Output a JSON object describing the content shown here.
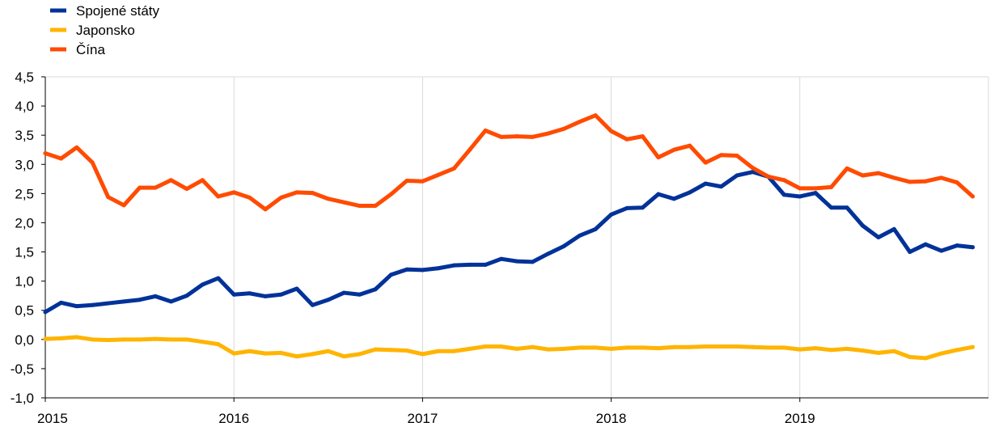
{
  "chart_data": {
    "type": "line",
    "title": "",
    "xlabel": "",
    "ylabel": "",
    "ylim": [
      -1.0,
      4.5
    ],
    "yticks": [
      -1.0,
      -0.5,
      0.0,
      0.5,
      1.0,
      1.5,
      2.0,
      2.5,
      3.0,
      3.5,
      4.0,
      4.5
    ],
    "ytick_labels": [
      "-1,0",
      "-0,5",
      "0,0",
      "0,5",
      "1,0",
      "1,5",
      "2,0",
      "2,5",
      "3,0",
      "3,5",
      "4,0",
      "4,5"
    ],
    "xticks": [
      2015,
      2016,
      2017,
      2018,
      2019
    ],
    "xtick_labels": [
      "2015",
      "2016",
      "2017",
      "2018",
      "2019"
    ],
    "x_start": "2015-01",
    "x_end": "2019-12",
    "grid": "vertical",
    "legend_position": "top-left",
    "x": [
      "2015-01",
      "2015-02",
      "2015-03",
      "2015-04",
      "2015-05",
      "2015-06",
      "2015-07",
      "2015-08",
      "2015-09",
      "2015-10",
      "2015-11",
      "2015-12",
      "2016-01",
      "2016-02",
      "2016-03",
      "2016-04",
      "2016-05",
      "2016-06",
      "2016-07",
      "2016-08",
      "2016-09",
      "2016-10",
      "2016-11",
      "2016-12",
      "2017-01",
      "2017-02",
      "2017-03",
      "2017-04",
      "2017-05",
      "2017-06",
      "2017-07",
      "2017-08",
      "2017-09",
      "2017-10",
      "2017-11",
      "2017-12",
      "2018-01",
      "2018-02",
      "2018-03",
      "2018-04",
      "2018-05",
      "2018-06",
      "2018-07",
      "2018-08",
      "2018-09",
      "2018-10",
      "2018-11",
      "2018-12",
      "2019-01",
      "2019-02",
      "2019-03",
      "2019-04",
      "2019-05",
      "2019-06",
      "2019-07",
      "2019-08",
      "2019-09",
      "2019-10",
      "2019-11",
      "2019-12"
    ],
    "series": [
      {
        "name": "Spojené státy",
        "color": "#003299",
        "values": [
          0.47,
          0.63,
          0.57,
          0.59,
          0.62,
          0.65,
          0.68,
          0.74,
          0.65,
          0.75,
          0.94,
          1.05,
          0.77,
          0.79,
          0.74,
          0.77,
          0.87,
          0.59,
          0.68,
          0.8,
          0.77,
          0.86,
          1.11,
          1.2,
          1.19,
          1.22,
          1.27,
          1.28,
          1.28,
          1.38,
          1.34,
          1.33,
          1.47,
          1.6,
          1.78,
          1.89,
          2.14,
          2.25,
          2.26,
          2.49,
          2.41,
          2.52,
          2.67,
          2.62,
          2.81,
          2.87,
          2.79,
          2.48,
          2.45,
          2.51,
          2.26,
          2.26,
          1.95,
          1.75,
          1.89,
          1.5,
          1.63,
          1.52,
          1.61,
          1.58
        ]
      },
      {
        "name": "Japonsko",
        "color": "#FFB400",
        "values": [
          0.01,
          0.02,
          0.04,
          0.0,
          -0.01,
          0.0,
          0.0,
          0.01,
          0.0,
          0.0,
          -0.04,
          -0.08,
          -0.24,
          -0.2,
          -0.24,
          -0.23,
          -0.29,
          -0.25,
          -0.2,
          -0.29,
          -0.25,
          -0.17,
          -0.18,
          -0.19,
          -0.25,
          -0.2,
          -0.2,
          -0.16,
          -0.12,
          -0.12,
          -0.16,
          -0.13,
          -0.17,
          -0.16,
          -0.14,
          -0.14,
          -0.16,
          -0.14,
          -0.14,
          -0.15,
          -0.13,
          -0.13,
          -0.12,
          -0.12,
          -0.12,
          -0.13,
          -0.14,
          -0.14,
          -0.17,
          -0.15,
          -0.18,
          -0.16,
          -0.19,
          -0.23,
          -0.2,
          -0.3,
          -0.32,
          -0.24,
          -0.18,
          -0.13
        ]
      },
      {
        "name": "Čína",
        "color": "#FF4B00",
        "values": [
          3.19,
          3.1,
          3.29,
          3.03,
          2.44,
          2.3,
          2.6,
          2.6,
          2.73,
          2.58,
          2.73,
          2.45,
          2.52,
          2.43,
          2.23,
          2.43,
          2.52,
          2.51,
          2.41,
          2.35,
          2.29,
          2.29,
          2.49,
          2.72,
          2.71,
          2.82,
          2.93,
          3.25,
          3.58,
          3.47,
          3.48,
          3.47,
          3.53,
          3.61,
          3.73,
          3.84,
          3.57,
          3.43,
          3.48,
          3.12,
          3.25,
          3.32,
          3.03,
          3.16,
          3.15,
          2.94,
          2.79,
          2.73,
          2.59,
          2.59,
          2.61,
          2.93,
          2.81,
          2.85,
          2.77,
          2.7,
          2.71,
          2.77,
          2.69,
          2.45
        ]
      }
    ]
  }
}
